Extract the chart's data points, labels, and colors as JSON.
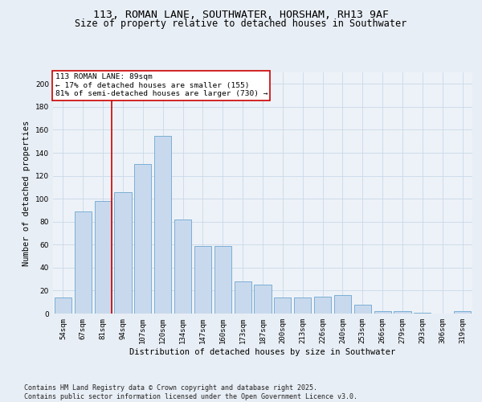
{
  "title_line1": "113, ROMAN LANE, SOUTHWATER, HORSHAM, RH13 9AF",
  "title_line2": "Size of property relative to detached houses in Southwater",
  "xlabel": "Distribution of detached houses by size in Southwater",
  "ylabel": "Number of detached properties",
  "bar_labels": [
    "54sqm",
    "67sqm",
    "81sqm",
    "94sqm",
    "107sqm",
    "120sqm",
    "134sqm",
    "147sqm",
    "160sqm",
    "173sqm",
    "187sqm",
    "200sqm",
    "213sqm",
    "226sqm",
    "240sqm",
    "253sqm",
    "266sqm",
    "279sqm",
    "293sqm",
    "306sqm",
    "319sqm"
  ],
  "bar_values": [
    14,
    89,
    98,
    106,
    130,
    155,
    82,
    59,
    59,
    28,
    25,
    14,
    14,
    15,
    16,
    8,
    2,
    2,
    1,
    0,
    2
  ],
  "bar_color": "#c9d9ed",
  "bar_edge_color": "#7bafd4",
  "annotation_text": "113 ROMAN LANE: 89sqm\n← 17% of detached houses are smaller (155)\n81% of semi-detached houses are larger (730) →",
  "annotation_box_color": "#ffffff",
  "annotation_box_edge": "#cc0000",
  "vline_color": "#cc0000",
  "vline_index": 2,
  "ylim": [
    0,
    210
  ],
  "yticks": [
    0,
    20,
    40,
    60,
    80,
    100,
    120,
    140,
    160,
    180,
    200
  ],
  "grid_color": "#c8d8e8",
  "background_color": "#e8eef5",
  "plot_bg_color": "#edf2f8",
  "footer": "Contains HM Land Registry data © Crown copyright and database right 2025.\nContains public sector information licensed under the Open Government Licence v3.0.",
  "title_fontsize": 9.5,
  "subtitle_fontsize": 8.5,
  "axis_label_fontsize": 7.5,
  "tick_fontsize": 6.5,
  "annotation_fontsize": 6.8,
  "footer_fontsize": 6.0
}
